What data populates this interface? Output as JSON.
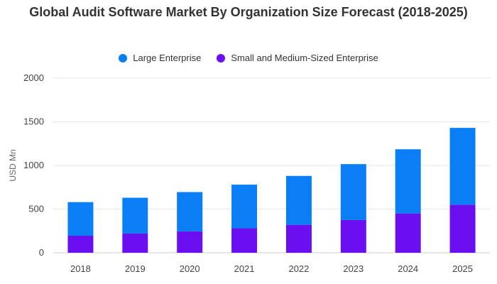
{
  "chart_data": {
    "type": "bar",
    "stacked": true,
    "title": "Global Audit Software Market By Organization Size Forecast (2018-2025)",
    "ylabel": "USD Mn",
    "xlabel": "",
    "categories": [
      "2018",
      "2019",
      "2020",
      "2021",
      "2022",
      "2023",
      "2024",
      "2025"
    ],
    "series": [
      {
        "name": "Small and Medium-Sized Enterprise",
        "color": "#6a0ff0",
        "values": [
          195,
          220,
          245,
          280,
          320,
          375,
          450,
          550
        ]
      },
      {
        "name": "Large Enterprise",
        "color": "#0a7ef5",
        "values": [
          385,
          410,
          450,
          500,
          560,
          640,
          735,
          880
        ]
      }
    ],
    "ylim": [
      0,
      2000
    ],
    "yticks": [
      0,
      500,
      1000,
      1500,
      2000
    ],
    "grid": true,
    "legend_position": "top-center"
  }
}
